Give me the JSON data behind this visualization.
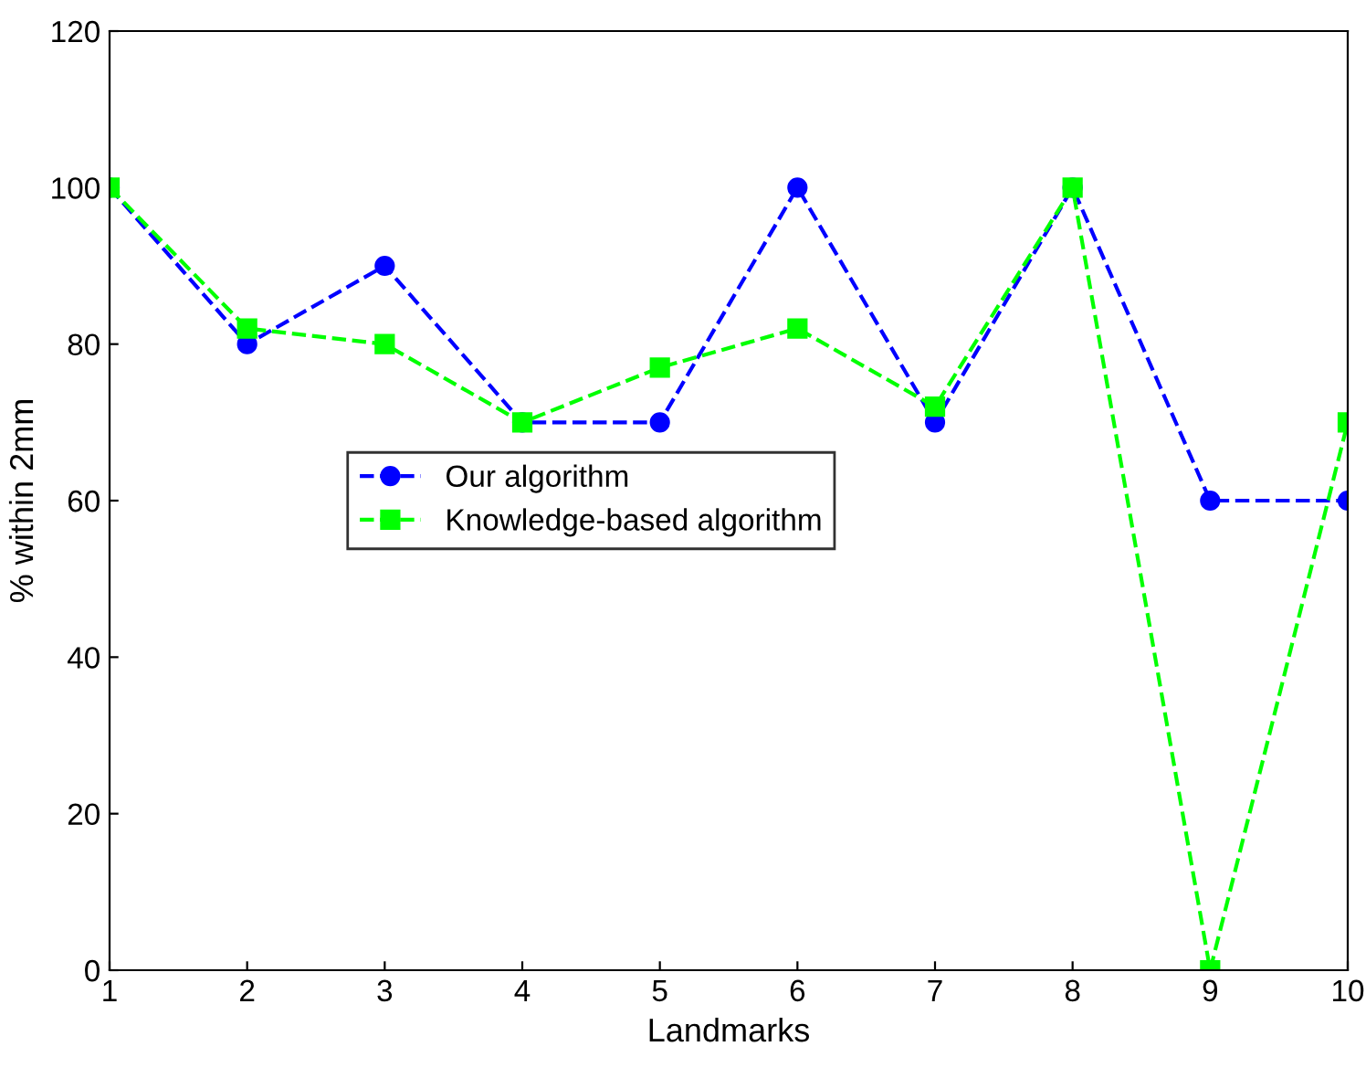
{
  "chart_data": {
    "type": "line",
    "xlabel": "Landmarks",
    "ylabel": "% within 2mm",
    "x": [
      1,
      2,
      3,
      4,
      5,
      6,
      7,
      8,
      9,
      10
    ],
    "series": [
      {
        "name": "Our algorithm",
        "color": "#0000ff",
        "marker": "circle",
        "line_style": "dashed",
        "values": [
          100,
          80,
          90,
          70,
          70,
          100,
          70,
          100,
          60,
          60
        ]
      },
      {
        "name": "Knowledge-based algorithm",
        "color": "#00ff00",
        "marker": "square",
        "line_style": "dashed",
        "values": [
          100,
          82,
          80,
          70,
          77,
          82,
          72,
          100,
          0,
          70
        ]
      }
    ],
    "xlim": [
      1,
      10
    ],
    "xticks": [
      1,
      2,
      3,
      4,
      5,
      6,
      7,
      8,
      9,
      10
    ],
    "ylim": [
      0,
      120
    ],
    "yticks": [
      0,
      20,
      40,
      60,
      80,
      100,
      120
    ],
    "grid": false,
    "legend": "center left"
  }
}
